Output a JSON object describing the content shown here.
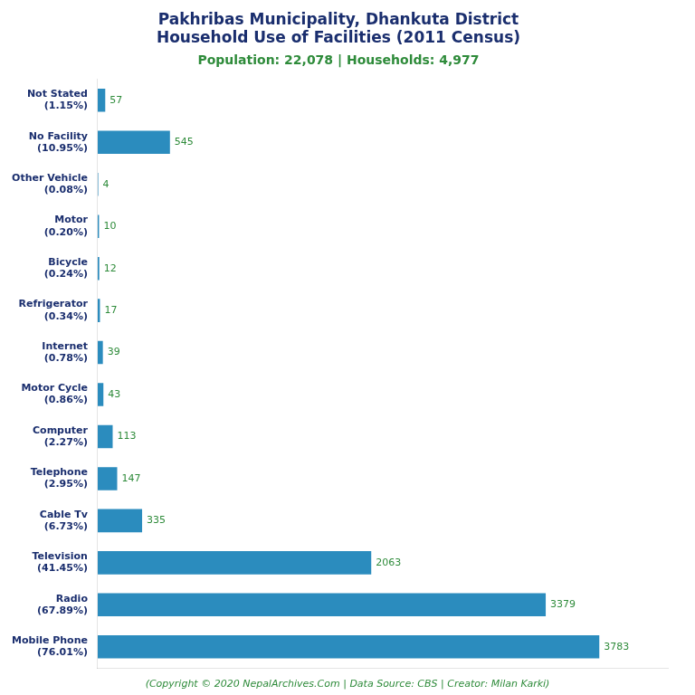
{
  "chart_data": {
    "type": "bar",
    "orientation": "horizontal",
    "title": [
      "Pakhribas Municipality, Dhankuta District",
      "Household Use of Facilities (2011 Census)"
    ],
    "subtitle": "Population: 22,078 | Households: 4,977",
    "footer": "(Copyright © 2020 NepalArchives.Com | Data Source: CBS | Creator: Milan Karki)",
    "categories": [
      "Not Stated\n(1.15%)",
      "No Facility\n(10.95%)",
      "Other Vehicle\n(0.08%)",
      "Motor\n(0.20%)",
      "Bicycle\n(0.24%)",
      "Refrigerator\n(0.34%)",
      "Internet\n(0.78%)",
      "Motor Cycle\n(0.86%)",
      "Computer\n(2.27%)",
      "Telephone\n(2.95%)",
      "Cable Tv\n(6.73%)",
      "Television\n(41.45%)",
      "Radio\n(67.89%)",
      "Mobile Phone\n(76.01%)"
    ],
    "values": [
      57,
      545,
      4,
      10,
      12,
      17,
      39,
      43,
      113,
      147,
      335,
      2063,
      3379,
      3783
    ],
    "color": "#2b8cbe",
    "xlim": [
      0,
      4300
    ],
    "data_labels": true,
    "tick_labels": "y",
    "grid": false
  }
}
